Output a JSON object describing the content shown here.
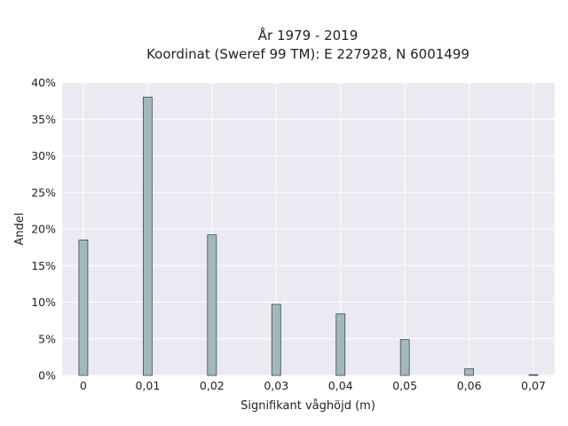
{
  "chart_data": {
    "type": "bar",
    "title_line1": "År 1979 - 2019",
    "title_line2": "Koordinat (Sweref 99 TM): E 227928, N 6001499",
    "xlabel": "Signifikant våghöjd (m)",
    "ylabel": "Andel",
    "x": [
      0,
      0.01,
      0.02,
      0.03,
      0.04,
      0.05,
      0.06,
      0.07
    ],
    "values": [
      18.5,
      38.0,
      19.2,
      9.7,
      8.4,
      4.9,
      0.9,
      0.1
    ],
    "xlim": [
      -0.0033,
      0.0733
    ],
    "ylim": [
      0,
      40
    ],
    "x_ticks": [
      0,
      0.01,
      0.02,
      0.03,
      0.04,
      0.05,
      0.06,
      0.07
    ],
    "x_tick_labels": [
      "0",
      "0,01",
      "0,02",
      "0,03",
      "0,04",
      "0,05",
      "0,06",
      "0,07"
    ],
    "y_ticks": [
      0,
      5,
      10,
      15,
      20,
      25,
      30,
      35,
      40
    ],
    "y_tick_labels": [
      "0%",
      "5%",
      "10%",
      "15%",
      "20%",
      "25%",
      "30%",
      "35%",
      "40%"
    ],
    "grid": true,
    "colors": {
      "plot_background": "#eaeaf2",
      "grid": "#ffffff",
      "bar_fill": "#a2b9bb",
      "bar_edge": "#3c4a4b",
      "text": "#222222"
    }
  }
}
